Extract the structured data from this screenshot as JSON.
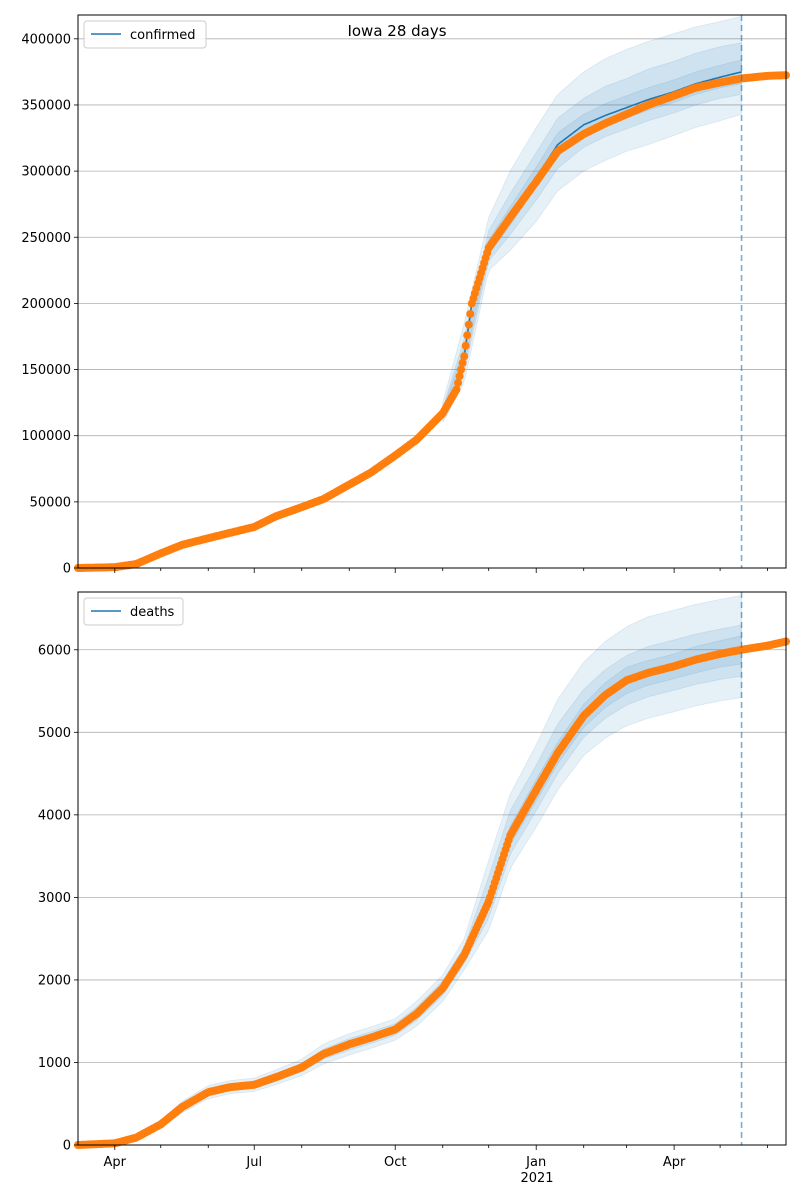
{
  "figure": {
    "title": "Iowa 28 days",
    "x_tick_labels": [
      "Apr",
      "Jul",
      "Oct",
      "Jan",
      "Apr"
    ],
    "x_year_label": "2021"
  },
  "colors": {
    "model_line": "#1f77b4",
    "observed": "#ff7f0e",
    "band": "#1f77b4",
    "grid": "#b0b0b0",
    "forecast_marker": "#1f77b4"
  },
  "chart_data": [
    {
      "type": "line",
      "title": "Iowa 28 days",
      "legend": [
        "confirmed"
      ],
      "legend_position": "top-left",
      "xlabel": "",
      "ylabel": "",
      "x_range": [
        "2020-03-08",
        "2021-06-13"
      ],
      "ylim": [
        0,
        418000
      ],
      "yticks": [
        0,
        50000,
        100000,
        150000,
        200000,
        250000,
        300000,
        350000,
        400000
      ],
      "grid": "horizontal",
      "forecast_start": "2021-05-15",
      "series": [
        {
          "name": "confirmed",
          "style": "line",
          "x": [
            "2020-03-08",
            "2020-04-01",
            "2020-04-15",
            "2020-05-01",
            "2020-05-15",
            "2020-06-01",
            "2020-06-15",
            "2020-07-01",
            "2020-07-15",
            "2020-08-01",
            "2020-08-15",
            "2020-09-01",
            "2020-09-15",
            "2020-10-01",
            "2020-10-15",
            "2020-11-01",
            "2020-11-10",
            "2020-11-15",
            "2020-11-20",
            "2020-12-01",
            "2020-12-15",
            "2021-01-01",
            "2021-01-15",
            "2021-02-01",
            "2021-02-15",
            "2021-03-01",
            "2021-03-15",
            "2021-04-01",
            "2021-04-15",
            "2021-05-01",
            "2021-05-15"
          ],
          "values": [
            0,
            600,
            3000,
            11000,
            17500,
            22500,
            26500,
            31000,
            39000,
            46000,
            52000,
            63000,
            72000,
            85000,
            97000,
            117000,
            135000,
            160000,
            200000,
            242000,
            265000,
            295000,
            320000,
            335000,
            342000,
            348000,
            354000,
            360000,
            366000,
            371000,
            375000
          ]
        },
        {
          "name": "observed",
          "style": "points",
          "x": [
            "2020-03-08",
            "2020-04-01",
            "2020-04-15",
            "2020-05-01",
            "2020-05-15",
            "2020-06-01",
            "2020-06-15",
            "2020-07-01",
            "2020-07-15",
            "2020-08-01",
            "2020-08-15",
            "2020-09-01",
            "2020-09-15",
            "2020-10-01",
            "2020-10-15",
            "2020-11-01",
            "2020-11-10",
            "2020-11-15",
            "2020-11-20",
            "2020-12-01",
            "2020-12-15",
            "2021-01-01",
            "2021-01-15",
            "2021-02-01",
            "2021-02-15",
            "2021-03-01",
            "2021-03-15",
            "2021-04-01",
            "2021-04-15",
            "2021-05-01",
            "2021-05-15",
            "2021-06-01",
            "2021-06-13"
          ],
          "values": [
            0,
            600,
            3000,
            11000,
            17500,
            22500,
            26500,
            31000,
            39000,
            46000,
            52000,
            63000,
            72000,
            85000,
            97000,
            117000,
            135000,
            160000,
            200000,
            242000,
            265000,
            292000,
            315000,
            328000,
            336000,
            343000,
            350000,
            357000,
            363000,
            367000,
            370000,
            372000,
            372500
          ]
        },
        {
          "name": "outer band",
          "style": "band",
          "x": [
            "2020-11-01",
            "2020-11-15",
            "2020-12-01",
            "2020-12-15",
            "2021-01-01",
            "2021-01-15",
            "2021-02-01",
            "2021-02-15",
            "2021-03-01",
            "2021-03-15",
            "2021-04-01",
            "2021-04-15",
            "2021-05-01",
            "2021-05-15"
          ],
          "lower": [
            110000,
            140000,
            225000,
            240000,
            262000,
            285000,
            300000,
            308000,
            315000,
            320000,
            327000,
            333000,
            338000,
            343000
          ],
          "upper": [
            125000,
            185000,
            265000,
            300000,
            333000,
            358000,
            375000,
            385000,
            392000,
            398000,
            404000,
            409000,
            413000,
            417000
          ]
        },
        {
          "name": "middle band",
          "style": "band",
          "x": [
            "2020-11-01",
            "2020-11-15",
            "2020-12-01",
            "2020-12-15",
            "2021-01-01",
            "2021-01-15",
            "2021-02-01",
            "2021-02-15",
            "2021-03-01",
            "2021-03-15",
            "2021-04-01",
            "2021-04-15",
            "2021-05-01",
            "2021-05-15"
          ],
          "lower": [
            113000,
            148000,
            232000,
            252000,
            278000,
            302000,
            318000,
            326000,
            332000,
            338000,
            344000,
            350000,
            355000,
            358000
          ],
          "upper": [
            121000,
            173000,
            255000,
            283000,
            314000,
            340000,
            355000,
            364000,
            370000,
            377000,
            383000,
            389000,
            394000,
            397000
          ]
        },
        {
          "name": "inner band",
          "style": "band",
          "x": [
            "2020-11-01",
            "2020-11-15",
            "2020-12-01",
            "2020-12-15",
            "2021-01-01",
            "2021-01-15",
            "2021-02-01",
            "2021-02-15",
            "2021-03-01",
            "2021-03-15",
            "2021-04-01",
            "2021-04-15",
            "2021-05-01",
            "2021-05-15"
          ],
          "lower": [
            115000,
            153000,
            237000,
            259000,
            288000,
            312000,
            327000,
            334000,
            340000,
            346000,
            352000,
            358000,
            363000,
            366000
          ],
          "upper": [
            119000,
            167000,
            248000,
            273000,
            303000,
            329000,
            343000,
            351000,
            357000,
            363000,
            369000,
            375000,
            380000,
            384000
          ]
        }
      ]
    },
    {
      "type": "line",
      "title": "",
      "legend": [
        "deaths"
      ],
      "legend_position": "top-left",
      "xlabel": "",
      "ylabel": "",
      "x_range": [
        "2020-03-08",
        "2021-06-13"
      ],
      "ylim": [
        0,
        6700
      ],
      "yticks": [
        0,
        1000,
        2000,
        3000,
        4000,
        5000,
        6000
      ],
      "grid": "horizontal",
      "forecast_start": "2021-05-15",
      "series": [
        {
          "name": "deaths",
          "style": "line",
          "x": [
            "2020-03-08",
            "2020-04-01",
            "2020-04-15",
            "2020-05-01",
            "2020-05-15",
            "2020-06-01",
            "2020-06-15",
            "2020-07-01",
            "2020-07-15",
            "2020-08-01",
            "2020-08-15",
            "2020-09-01",
            "2020-09-15",
            "2020-10-01",
            "2020-10-15",
            "2020-11-01",
            "2020-11-15",
            "2020-12-01",
            "2020-12-15",
            "2021-01-01",
            "2021-01-15",
            "2021-02-01",
            "2021-02-15",
            "2021-03-01",
            "2021-03-15",
            "2021-04-01",
            "2021-04-15",
            "2021-05-01",
            "2021-05-15"
          ],
          "values": [
            0,
            20,
            90,
            250,
            460,
            640,
            700,
            730,
            820,
            940,
            1100,
            1220,
            1300,
            1400,
            1590,
            1900,
            2300,
            2950,
            3750,
            4300,
            4750,
            5200,
            5450,
            5630,
            5720,
            5800,
            5880,
            5950,
            6000
          ]
        },
        {
          "name": "observed",
          "style": "points",
          "x": [
            "2020-03-08",
            "2020-04-01",
            "2020-04-15",
            "2020-05-01",
            "2020-05-15",
            "2020-06-01",
            "2020-06-15",
            "2020-07-01",
            "2020-07-15",
            "2020-08-01",
            "2020-08-15",
            "2020-09-01",
            "2020-09-15",
            "2020-10-01",
            "2020-10-15",
            "2020-11-01",
            "2020-11-15",
            "2020-12-01",
            "2020-12-15",
            "2021-01-01",
            "2021-01-15",
            "2021-02-01",
            "2021-02-15",
            "2021-03-01",
            "2021-03-15",
            "2021-04-01",
            "2021-04-15",
            "2021-05-01",
            "2021-05-15",
            "2021-06-01",
            "2021-06-13"
          ],
          "values": [
            0,
            20,
            90,
            250,
            460,
            640,
            700,
            730,
            820,
            940,
            1100,
            1220,
            1300,
            1400,
            1590,
            1900,
            2300,
            2950,
            3750,
            4300,
            4750,
            5200,
            5450,
            5630,
            5720,
            5800,
            5880,
            5950,
            6000,
            6050,
            6100
          ]
        },
        {
          "name": "outer band",
          "style": "band",
          "x": [
            "2020-05-01",
            "2020-05-15",
            "2020-06-01",
            "2020-06-15",
            "2020-07-01",
            "2020-07-15",
            "2020-08-01",
            "2020-08-15",
            "2020-09-01",
            "2020-09-15",
            "2020-10-01",
            "2020-10-15",
            "2020-11-01",
            "2020-11-15",
            "2020-12-01",
            "2020-12-15",
            "2021-01-01",
            "2021-01-15",
            "2021-02-01",
            "2021-02-15",
            "2021-03-01",
            "2021-03-15",
            "2021-04-01",
            "2021-04-15",
            "2021-05-01",
            "2021-05-15"
          ],
          "lower": [
            210,
            390,
            560,
            620,
            650,
            730,
            840,
            980,
            1090,
            1170,
            1270,
            1440,
            1740,
            2120,
            2600,
            3350,
            3850,
            4300,
            4720,
            4930,
            5080,
            5170,
            5250,
            5320,
            5380,
            5420
          ],
          "upper": [
            290,
            530,
            720,
            780,
            810,
            910,
            1040,
            1220,
            1350,
            1430,
            1530,
            1740,
            2060,
            2500,
            3450,
            4250,
            4850,
            5400,
            5850,
            6100,
            6280,
            6400,
            6480,
            6550,
            6610,
            6660
          ]
        },
        {
          "name": "middle band",
          "style": "band",
          "x": [
            "2020-05-01",
            "2020-05-15",
            "2020-06-01",
            "2020-06-15",
            "2020-07-01",
            "2020-07-15",
            "2020-08-01",
            "2020-08-15",
            "2020-09-01",
            "2020-09-15",
            "2020-10-01",
            "2020-10-15",
            "2020-11-01",
            "2020-11-15",
            "2020-12-01",
            "2020-12-15",
            "2021-01-01",
            "2021-01-15",
            "2021-02-01",
            "2021-02-15",
            "2021-03-01",
            "2021-03-15",
            "2021-04-01",
            "2021-04-15",
            "2021-05-01",
            "2021-05-15"
          ],
          "lower": [
            225,
            420,
            595,
            660,
            690,
            775,
            890,
            1040,
            1150,
            1230,
            1330,
            1510,
            1810,
            2200,
            2750,
            3520,
            4050,
            4500,
            4940,
            5170,
            5330,
            5430,
            5510,
            5580,
            5640,
            5680
          ],
          "upper": [
            275,
            500,
            685,
            740,
            770,
            865,
            990,
            1160,
            1290,
            1370,
            1470,
            1670,
            1990,
            2400,
            3250,
            4050,
            4600,
            5100,
            5520,
            5760,
            5930,
            6040,
            6120,
            6190,
            6250,
            6300
          ]
        },
        {
          "name": "inner band",
          "style": "band",
          "x": [
            "2020-05-01",
            "2020-05-15",
            "2020-06-01",
            "2020-06-15",
            "2020-07-01",
            "2020-07-15",
            "2020-08-01",
            "2020-08-15",
            "2020-09-01",
            "2020-09-15",
            "2020-10-01",
            "2020-10-15",
            "2020-11-01",
            "2020-11-15",
            "2020-12-01",
            "2020-12-15",
            "2021-01-01",
            "2021-01-15",
            "2021-02-01",
            "2021-02-15",
            "2021-03-01",
            "2021-03-15",
            "2021-04-01",
            "2021-04-15",
            "2021-05-01",
            "2021-05-15"
          ],
          "lower": [
            238,
            445,
            620,
            683,
            713,
            800,
            918,
            1075,
            1188,
            1268,
            1370,
            1555,
            1860,
            2250,
            2840,
            3640,
            4170,
            4620,
            5060,
            5300,
            5470,
            5570,
            5650,
            5720,
            5790,
            5830
          ],
          "upper": [
            262,
            475,
            660,
            717,
            747,
            840,
            962,
            1125,
            1252,
            1332,
            1430,
            1625,
            1940,
            2350,
            3060,
            3860,
            4430,
            4880,
            5340,
            5600,
            5790,
            5870,
            5950,
            6040,
            6110,
            6170
          ]
        }
      ]
    }
  ]
}
